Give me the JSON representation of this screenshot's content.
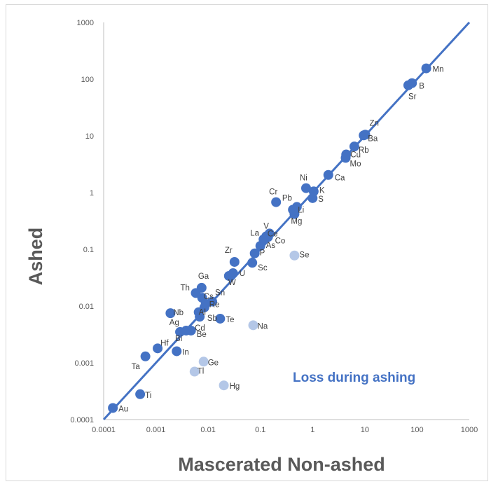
{
  "chart_data": {
    "type": "scatter",
    "title": "",
    "xlabel": "Mascerated Non-ashed",
    "ylabel": "Ashed",
    "x_scale": "log",
    "y_scale": "log",
    "xlim": [
      0.0001,
      1000
    ],
    "ylim": [
      0.0001,
      1000
    ],
    "x_ticks": [
      "0.0001",
      "0.001",
      "0.01",
      "0.1",
      "1",
      "10",
      "100",
      "1000"
    ],
    "y_ticks": [
      "0.0001",
      "0.001",
      "0.01",
      "0.1",
      "1",
      "10",
      "100",
      "1000"
    ],
    "grid": false,
    "legend": "none",
    "colors": {
      "retained": "#4472c4",
      "lost": "#b4c7e7",
      "line": "#4472c4",
      "annotation": "#4472c4"
    },
    "annotation": "Loss during ashing",
    "reference_line": {
      "from": [
        0.0001,
        0.0001
      ],
      "to": [
        1000,
        1000
      ]
    },
    "points": [
      {
        "label": "Au",
        "x": 0.00015,
        "y": 0.00016,
        "group": "retained"
      },
      {
        "label": "Ti",
        "x": 0.0005,
        "y": 0.00028,
        "group": "retained"
      },
      {
        "label": "Ta",
        "x": 0.00063,
        "y": 0.0013,
        "group": "retained"
      },
      {
        "label": "Hf",
        "x": 0.00108,
        "y": 0.0018,
        "group": "retained"
      },
      {
        "label": "In",
        "x": 0.0025,
        "y": 0.0016,
        "group": "retained"
      },
      {
        "label": "Bi",
        "x": 0.0029,
        "y": 0.0035,
        "group": "retained"
      },
      {
        "label": "Be",
        "x": 0.0047,
        "y": 0.0037,
        "group": "retained"
      },
      {
        "label": "Ag",
        "x": 0.0038,
        "y": 0.0037,
        "group": "retained"
      },
      {
        "label": "Nb",
        "x": 0.0019,
        "y": 0.0075,
        "group": "retained"
      },
      {
        "label": "Cd",
        "x": 0.0069,
        "y": 0.0065,
        "group": "retained"
      },
      {
        "label": "Al",
        "x": 0.0066,
        "y": 0.0078,
        "group": "retained"
      },
      {
        "label": "Te",
        "x": 0.017,
        "y": 0.006,
        "group": "retained"
      },
      {
        "label": "Th",
        "x": 0.0058,
        "y": 0.017,
        "group": "retained"
      },
      {
        "label": "Ga",
        "x": 0.0075,
        "y": 0.021,
        "group": "retained"
      },
      {
        "label": "Cs",
        "x": 0.0077,
        "y": 0.014,
        "group": "retained"
      },
      {
        "label": "Sn",
        "x": 0.012,
        "y": 0.012,
        "group": "retained"
      },
      {
        "label": "Re",
        "x": 0.009,
        "y": 0.011,
        "group": "retained"
      },
      {
        "label": "Sb",
        "x": 0.0085,
        "y": 0.0095,
        "group": "retained"
      },
      {
        "label": "W",
        "x": 0.025,
        "y": 0.034,
        "group": "retained"
      },
      {
        "label": "U",
        "x": 0.03,
        "y": 0.038,
        "group": "retained"
      },
      {
        "label": "Zr",
        "x": 0.032,
        "y": 0.06,
        "group": "retained"
      },
      {
        "label": "Sc",
        "x": 0.07,
        "y": 0.058,
        "group": "retained"
      },
      {
        "label": "P",
        "x": 0.078,
        "y": 0.085,
        "group": "retained"
      },
      {
        "label": "As",
        "x": 0.1,
        "y": 0.115,
        "group": "retained"
      },
      {
        "label": "La",
        "x": 0.115,
        "y": 0.15,
        "group": "retained"
      },
      {
        "label": "Co",
        "x": 0.14,
        "y": 0.165,
        "group": "retained"
      },
      {
        "label": "Ce",
        "x": 0.15,
        "y": 0.19,
        "group": "retained"
      },
      {
        "label": "V",
        "x": 0.13,
        "y": 0.17,
        "group": "retained"
      },
      {
        "label": "Cr",
        "x": 0.2,
        "y": 0.68,
        "group": "retained"
      },
      {
        "label": "Mg",
        "x": 0.45,
        "y": 0.42,
        "group": "retained"
      },
      {
        "label": "Li",
        "x": 0.42,
        "y": 0.5,
        "group": "retained"
      },
      {
        "label": "Pb",
        "x": 0.5,
        "y": 0.56,
        "group": "retained"
      },
      {
        "label": "S",
        "x": 1.0,
        "y": 0.8,
        "group": "retained"
      },
      {
        "label": "K",
        "x": 1.05,
        "y": 1.05,
        "group": "retained"
      },
      {
        "label": "Ni",
        "x": 0.75,
        "y": 1.2,
        "group": "retained"
      },
      {
        "label": "Ca",
        "x": 2.0,
        "y": 2.05,
        "group": "retained"
      },
      {
        "label": "Mo",
        "x": 4.3,
        "y": 4.1,
        "group": "retained"
      },
      {
        "label": "Cu",
        "x": 4.4,
        "y": 4.7,
        "group": "retained"
      },
      {
        "label": "Rb",
        "x": 6.3,
        "y": 6.5,
        "group": "retained"
      },
      {
        "label": "Ba",
        "x": 9.5,
        "y": 10.2,
        "group": "retained"
      },
      {
        "label": "Zn",
        "x": 10.2,
        "y": 10.5,
        "group": "retained"
      },
      {
        "label": "Sr",
        "x": 68,
        "y": 78,
        "group": "retained"
      },
      {
        "label": "B",
        "x": 80,
        "y": 85,
        "group": "retained"
      },
      {
        "label": "Mn",
        "x": 150,
        "y": 155,
        "group": "retained"
      },
      {
        "label": "Ge",
        "x": 0.0082,
        "y": 0.00105,
        "group": "lost"
      },
      {
        "label": "Tl",
        "x": 0.0055,
        "y": 0.0007,
        "group": "lost"
      },
      {
        "label": "Hg",
        "x": 0.02,
        "y": 0.0004,
        "group": "lost"
      },
      {
        "label": "Na",
        "x": 0.073,
        "y": 0.0046,
        "group": "lost"
      },
      {
        "label": "Se",
        "x": 0.45,
        "y": 0.078,
        "group": "lost"
      }
    ]
  }
}
